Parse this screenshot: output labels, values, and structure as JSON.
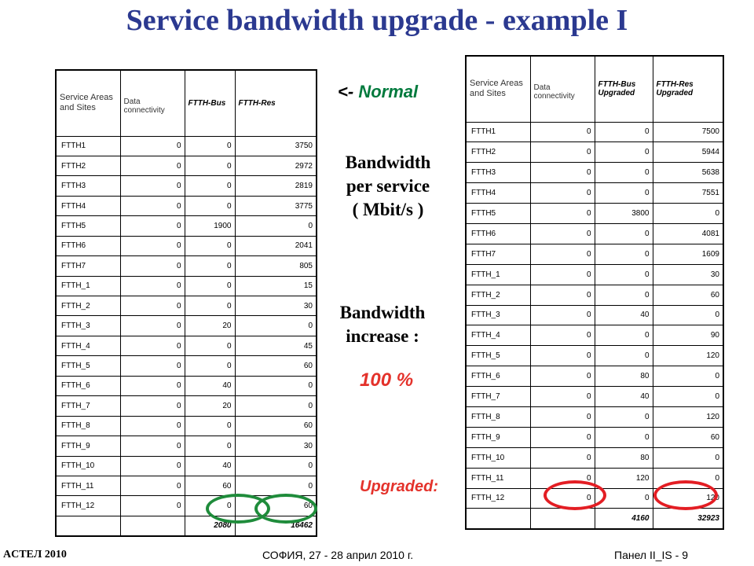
{
  "title": "Service bandwidth upgrade - example I",
  "left_table": {
    "headers": [
      "Service Areas and Sites",
      "Data connectivity",
      "FTTH-Bus",
      "FTTH-Res"
    ],
    "rows": [
      [
        "FTTH1",
        "0",
        "0",
        "3750"
      ],
      [
        "FTTH2",
        "0",
        "0",
        "2972"
      ],
      [
        "FTTH3",
        "0",
        "0",
        "2819"
      ],
      [
        "FTTH4",
        "0",
        "0",
        "3775"
      ],
      [
        "FTTH5",
        "0",
        "1900",
        "0"
      ],
      [
        "FTTH6",
        "0",
        "0",
        "2041"
      ],
      [
        "FTTH7",
        "0",
        "0",
        "805"
      ],
      [
        "FTTH_1",
        "0",
        "0",
        "15"
      ],
      [
        "FTTH_2",
        "0",
        "0",
        "30"
      ],
      [
        "FTTH_3",
        "0",
        "20",
        "0"
      ],
      [
        "FTTH_4",
        "0",
        "0",
        "45"
      ],
      [
        "FTTH_5",
        "0",
        "0",
        "60"
      ],
      [
        "FTTH_6",
        "0",
        "40",
        "0"
      ],
      [
        "FTTH_7",
        "0",
        "20",
        "0"
      ],
      [
        "FTTH_8",
        "0",
        "0",
        "60"
      ],
      [
        "FTTH_9",
        "0",
        "0",
        "30"
      ],
      [
        "FTTH_10",
        "0",
        "40",
        "0"
      ],
      [
        "FTTH_11",
        "0",
        "60",
        "0"
      ],
      [
        "FTTH_12",
        "0",
        "0",
        "60"
      ]
    ],
    "totals": [
      "",
      "",
      "2080",
      "16462"
    ]
  },
  "right_table": {
    "headers": [
      "Service Areas and Sites",
      "Data connectivity",
      "FTTH-Bus Upgraded",
      "FTTH-Res Upgraded"
    ],
    "rows": [
      [
        "FTTH1",
        "0",
        "0",
        "7500"
      ],
      [
        "FTTH2",
        "0",
        "0",
        "5944"
      ],
      [
        "FTTH3",
        "0",
        "0",
        "5638"
      ],
      [
        "FTTH4",
        "0",
        "0",
        "7551"
      ],
      [
        "FTTH5",
        "0",
        "3800",
        "0"
      ],
      [
        "FTTH6",
        "0",
        "0",
        "4081"
      ],
      [
        "FTTH7",
        "0",
        "0",
        "1609"
      ],
      [
        "FTTH_1",
        "0",
        "0",
        "30"
      ],
      [
        "FTTH_2",
        "0",
        "0",
        "60"
      ],
      [
        "FTTH_3",
        "0",
        "40",
        "0"
      ],
      [
        "FTTH_4",
        "0",
        "0",
        "90"
      ],
      [
        "FTTH_5",
        "0",
        "0",
        "120"
      ],
      [
        "FTTH_6",
        "0",
        "80",
        "0"
      ],
      [
        "FTTH_7",
        "0",
        "40",
        "0"
      ],
      [
        "FTTH_8",
        "0",
        "0",
        "120"
      ],
      [
        "FTTH_9",
        "0",
        "0",
        "60"
      ],
      [
        "FTTH_10",
        "0",
        "80",
        "0"
      ],
      [
        "FTTH_11",
        "0",
        "120",
        "0"
      ],
      [
        "FTTH_12",
        "0",
        "0",
        "120"
      ]
    ],
    "totals": [
      "",
      "",
      "4160",
      "32923"
    ]
  },
  "notes": {
    "normal_arrow": "<-",
    "normal_word": "Normal",
    "bandwidth_per_service": [
      "Bandwidth",
      "per service",
      "( Mbit/s )"
    ],
    "bandwidth_increase": [
      "Bandwidth",
      "increase :"
    ],
    "percent": "100 %",
    "upgraded": "Upgraded:"
  },
  "footer": {
    "left": "ACTEЛ 2010",
    "middle": "СОФИЯ, 27 - 28 април 2010 г.",
    "right": "Панел II_IS - 9"
  },
  "colors": {
    "title": "#2b3990",
    "normal": "#007a3d",
    "highlight_red": "#e31e24",
    "highlight_green": "#1f8c3b"
  }
}
